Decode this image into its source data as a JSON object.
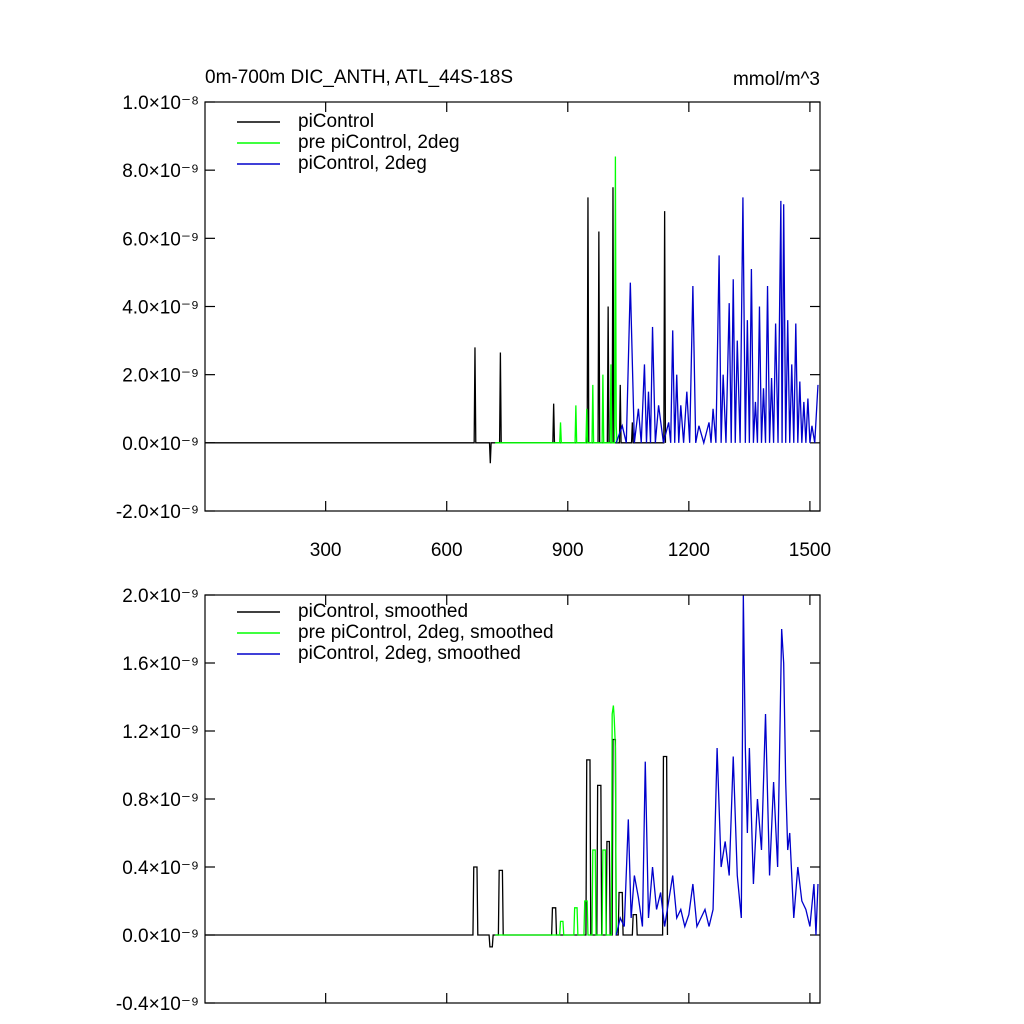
{
  "chart_data": [
    {
      "type": "line",
      "title": "0m-700m DIC_ANTH, ATL_44S-18S",
      "units_label": "mmol/m^3",
      "xlim": [
        1,
        1525
      ],
      "xticks": [
        300,
        600,
        900,
        1200,
        1500
      ],
      "show_x_labels": true,
      "ylim": [
        -2e-09,
        1e-08
      ],
      "yticks": [
        {
          "value": -2e-09,
          "label": "-2.0×10⁻⁹"
        },
        {
          "value": 0,
          "label": "0.0×10⁻⁹"
        },
        {
          "value": 2e-09,
          "label": "2.0×10⁻⁹"
        },
        {
          "value": 4e-09,
          "label": "4.0×10⁻⁹"
        },
        {
          "value": 6e-09,
          "label": "6.0×10⁻⁹"
        },
        {
          "value": 8e-09,
          "label": "8.0×10⁻⁹"
        },
        {
          "value": 1e-08,
          "label": "1.0×10⁻⁸"
        }
      ],
      "series": [
        {
          "name": "piControl",
          "color": "#000000",
          "x": [
            1,
            668,
            670,
            672,
            706,
            708,
            710,
            731,
            733,
            735,
            863,
            865,
            867,
            948,
            950,
            952,
            975,
            977,
            979,
            998,
            1000,
            1002,
            1010,
            1012,
            1014,
            1028,
            1030,
            1032,
            1058,
            1060,
            1062,
            1138,
            1140,
            1142
          ],
          "values": [
            0,
            0,
            2.8e-09,
            0,
            0,
            -6e-10,
            0,
            0,
            2.65e-09,
            0,
            0,
            1.15e-09,
            0,
            0,
            7.2e-09,
            0,
            0,
            6.2e-09,
            0,
            0,
            4e-09,
            0,
            0,
            7.5e-09,
            0,
            0,
            1.7e-09,
            0,
            0,
            6e-10,
            0,
            0,
            6.8e-09,
            0
          ]
        },
        {
          "name": "pre piControl, 2deg",
          "color": "#00ff00",
          "x": [
            720,
            880,
            882,
            884,
            918,
            920,
            922,
            945,
            947,
            949,
            960,
            962,
            964,
            985,
            987,
            989,
            1005,
            1007,
            1009,
            1016,
            1018,
            1020,
            1022
          ],
          "values": [
            0,
            0,
            6e-10,
            0,
            0,
            1.1e-09,
            0,
            0,
            1e-09,
            0,
            0,
            1.7e-09,
            0,
            0,
            2e-09,
            0,
            0,
            2.3e-09,
            0,
            0,
            8.4e-09,
            5e-10,
            0
          ]
        },
        {
          "name": "piControl, 2deg",
          "color": "#0000cc",
          "x": [
            1020,
            1035,
            1045,
            1055,
            1065,
            1075,
            1082,
            1090,
            1095,
            1100,
            1105,
            1110,
            1117,
            1125,
            1137,
            1150,
            1155,
            1160,
            1165,
            1170,
            1175,
            1180,
            1187,
            1195,
            1202,
            1210,
            1217,
            1225,
            1237,
            1250,
            1255,
            1260,
            1267,
            1275,
            1280,
            1285,
            1292,
            1300,
            1305,
            1310,
            1315,
            1320,
            1327,
            1334,
            1340,
            1345,
            1350,
            1355,
            1360,
            1365,
            1370,
            1375,
            1380,
            1385,
            1390,
            1395,
            1400,
            1405,
            1410,
            1415,
            1421,
            1428,
            1431,
            1435,
            1440,
            1445,
            1450,
            1455,
            1460,
            1465,
            1470,
            1475,
            1480,
            1485,
            1490,
            1495,
            1500,
            1505,
            1512,
            1520
          ],
          "values": [
            0,
            5e-10,
            0,
            4.7e-09,
            0,
            1e-09,
            0,
            2.3e-09,
            0,
            1.5e-09,
            0,
            3.4e-09,
            0,
            1.1e-09,
            0,
            6e-10,
            0,
            3.3e-09,
            0,
            2e-09,
            0,
            1.1e-09,
            0,
            1.5e-09,
            0,
            4.6e-09,
            0,
            5e-10,
            0,
            6e-10,
            0,
            1e-09,
            0,
            5.5e-09,
            0,
            2e-09,
            0,
            4.1e-09,
            0,
            4.8e-09,
            0,
            3e-09,
            0,
            7.2e-09,
            0,
            3.6e-09,
            0,
            5.1e-09,
            0,
            1.2e-09,
            0,
            4e-09,
            0,
            1.6e-09,
            0,
            4.6e-09,
            0,
            1.9e-09,
            0,
            3.5e-09,
            0,
            7.1e-09,
            0,
            7e-09,
            0,
            3.6e-09,
            0,
            2.3e-09,
            0,
            3.5e-09,
            0,
            1.8e-09,
            0,
            1.2e-09,
            0,
            1.3e-09,
            0,
            5e-10,
            0,
            1.7e-09
          ]
        }
      ]
    },
    {
      "type": "line",
      "xlim": [
        1,
        1525
      ],
      "xticks": [
        300,
        600,
        900,
        1200,
        1500
      ],
      "show_x_labels": false,
      "ylim": [
        -4e-10,
        2e-09
      ],
      "yticks": [
        {
          "value": -4e-10,
          "label": "-0.4×10⁻⁹"
        },
        {
          "value": 0,
          "label": "0.0×10⁻⁹"
        },
        {
          "value": 4e-10,
          "label": "0.4×10⁻⁹"
        },
        {
          "value": 8e-10,
          "label": "0.8×10⁻⁹"
        },
        {
          "value": 1.2e-09,
          "label": "1.2×10⁻⁹"
        },
        {
          "value": 1.6e-09,
          "label": "1.6×10⁻⁹"
        },
        {
          "value": 2e-09,
          "label": "2.0×10⁻⁹"
        }
      ],
      "series": [
        {
          "name": "piControl, smoothed",
          "color": "#000000",
          "x": [
            1,
            665,
            667,
            675,
            677,
            705,
            707,
            713,
            715,
            728,
            730,
            738,
            740,
            860,
            862,
            870,
            872,
            945,
            947,
            955,
            957,
            972,
            974,
            982,
            984,
            995,
            997,
            1003,
            1005,
            1010,
            1012,
            1018,
            1020,
            1025,
            1027,
            1035,
            1037,
            1060,
            1062,
            1070,
            1072,
            1135,
            1137,
            1145,
            1147
          ],
          "values": [
            0,
            0,
            4e-10,
            4e-10,
            0,
            0,
            -7e-11,
            -7e-11,
            0,
            0,
            3.8e-10,
            3.8e-10,
            0,
            0,
            1.6e-10,
            1.6e-10,
            0,
            0,
            1.03e-09,
            1.03e-09,
            0,
            0,
            8.8e-10,
            8.8e-10,
            0,
            0,
            5.5e-10,
            5.5e-10,
            0,
            0,
            1.15e-09,
            1.15e-09,
            0,
            0,
            2.5e-10,
            2.5e-10,
            0,
            0,
            1.2e-10,
            1.2e-10,
            0,
            0,
            1.05e-09,
            1.05e-09,
            0
          ]
        },
        {
          "name": "pre piControl, 2deg, smoothed",
          "color": "#00ff00",
          "x": [
            720,
            880,
            882,
            888,
            890,
            915,
            917,
            923,
            925,
            940,
            942,
            948,
            950,
            960,
            962,
            968,
            970,
            985,
            987,
            993,
            995,
            1008,
            1010,
            1013,
            1015,
            1018,
            1020
          ],
          "values": [
            0,
            0,
            8e-11,
            8e-11,
            0,
            0,
            1.6e-10,
            1.6e-10,
            0,
            0,
            2e-10,
            2e-10,
            0,
            0,
            5e-10,
            5e-10,
            0,
            0,
            5e-10,
            5e-10,
            0,
            0,
            1.3e-09,
            1.35e-09,
            1.28e-09,
            1.1e-09,
            0
          ]
        },
        {
          "name": "piControl, 2deg, smoothed",
          "color": "#0000cc",
          "x": [
            1020,
            1030,
            1040,
            1050,
            1057,
            1065,
            1075,
            1085,
            1092,
            1100,
            1110,
            1120,
            1130,
            1140,
            1150,
            1160,
            1170,
            1180,
            1190,
            1200,
            1210,
            1220,
            1230,
            1240,
            1250,
            1260,
            1270,
            1280,
            1290,
            1300,
            1310,
            1320,
            1330,
            1335,
            1340,
            1345,
            1350,
            1360,
            1370,
            1380,
            1390,
            1400,
            1410,
            1420,
            1430,
            1435,
            1440,
            1445,
            1450,
            1460,
            1470,
            1480,
            1490,
            1500,
            1510,
            1515,
            1520
          ],
          "values": [
            0,
            1e-10,
            5e-11,
            6.8e-10,
            1e-10,
            3.5e-10,
            2.2e-10,
            5e-11,
            1.02e-09,
            1e-10,
            4e-10,
            1.5e-10,
            2.5e-10,
            5e-11,
            2e-10,
            3.5e-10,
            1e-10,
            1.5e-10,
            5e-11,
            1.2e-10,
            3e-10,
            5e-11,
            1e-10,
            1.5e-10,
            5e-11,
            1.5e-10,
            1.1e-09,
            4e-10,
            5.5e-10,
            3.5e-10,
            1.05e-09,
            3.5e-10,
            1e-10,
            2e-09,
            1.1e-09,
            6e-10,
            1.1e-09,
            3e-10,
            8e-10,
            5e-10,
            1.3e-09,
            3.5e-10,
            9e-10,
            4e-10,
            1.8e-09,
            1.6e-09,
            9e-10,
            5e-10,
            6e-10,
            1e-10,
            4e-10,
            2e-10,
            1.5e-10,
            5e-11,
            3e-10,
            0,
            3e-10
          ]
        }
      ]
    }
  ]
}
